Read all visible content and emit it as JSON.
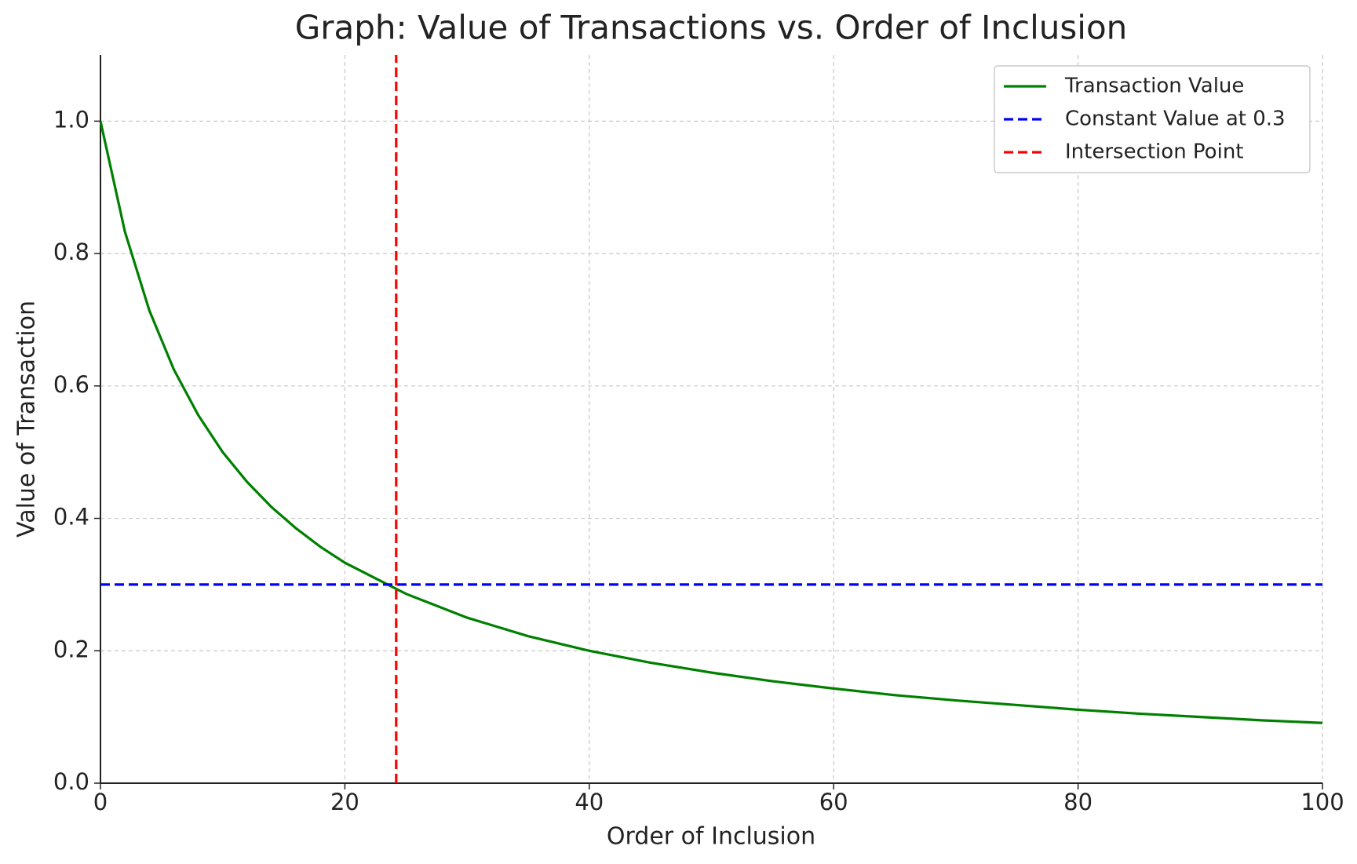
{
  "chart_data": {
    "type": "line",
    "title": "Graph: Value of Transactions vs. Order of Inclusion",
    "xlabel": "Order of Inclusion",
    "ylabel": "Value of Transaction",
    "xlim": [
      0,
      100
    ],
    "xticks": [
      0,
      20,
      40,
      60,
      80,
      100
    ],
    "ylim": [
      0,
      1.1
    ],
    "yticks": [
      {
        "value": 0,
        "label": "0.0"
      },
      {
        "value": 0.2,
        "label": "0.2"
      },
      {
        "value": 0.4,
        "label": "0.4"
      },
      {
        "value": 0.6,
        "label": "0.6"
      },
      {
        "value": 0.8,
        "label": "0.8"
      },
      {
        "value": 1,
        "label": "1.0"
      }
    ],
    "grid": true,
    "legend": "upper right",
    "series": [
      {
        "name": "Transaction Value",
        "color": "#008000",
        "dash": false,
        "x": [
          0,
          2,
          4,
          6,
          8,
          10,
          12,
          14,
          16,
          18,
          20,
          25,
          30,
          35,
          40,
          45,
          50,
          55,
          60,
          65,
          70,
          75,
          80,
          85,
          90,
          95,
          100
        ],
        "values": [
          1,
          0.833,
          0.714,
          0.625,
          0.556,
          0.5,
          0.455,
          0.417,
          0.385,
          0.357,
          0.333,
          0.286,
          0.25,
          0.222,
          0.2,
          0.182,
          0.167,
          0.154,
          0.143,
          0.133,
          0.125,
          0.118,
          0.111,
          0.105,
          0.1,
          0.095,
          0.091
        ]
      },
      {
        "name": "Constant Value at 0.3",
        "color": "#0000ff",
        "dash": true,
        "x": [
          0,
          100
        ],
        "values": [
          0.3,
          0.3
        ]
      },
      {
        "name": "Intersection Point",
        "color": "#ff0000",
        "dash": true,
        "x": [
          24.2,
          24.2
        ],
        "values": [
          0,
          1.1
        ]
      }
    ]
  }
}
